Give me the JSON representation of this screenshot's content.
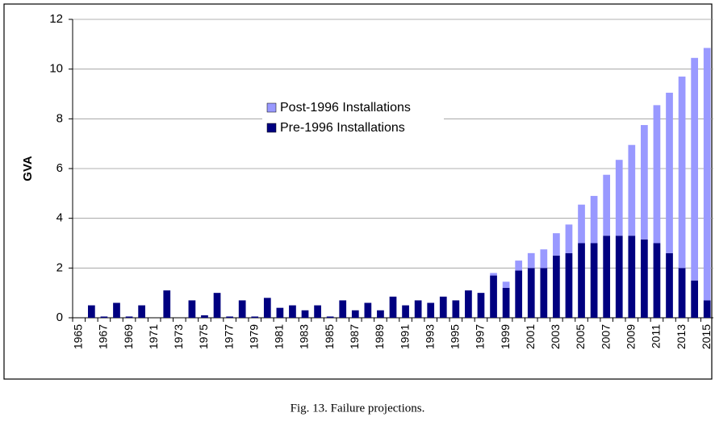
{
  "chart_data": {
    "type": "bar",
    "stacked": true,
    "y_label": "GVA",
    "caption": "Fig. 13.  Failure projections.",
    "categories": [
      "1965",
      null,
      "1967",
      null,
      "1969",
      null,
      "1971",
      null,
      "1973",
      null,
      "1975",
      null,
      "1977",
      null,
      "1979",
      null,
      "1981",
      null,
      "1983",
      null,
      "1985",
      null,
      "1987",
      null,
      "1989",
      null,
      "1991",
      null,
      "1993",
      null,
      "1995",
      null,
      "1997",
      null,
      "1999",
      null,
      "2001",
      null,
      "2003",
      null,
      "2005",
      null,
      "2007",
      null,
      "2009",
      null,
      "2011",
      null,
      "2013",
      null,
      "2015"
    ],
    "series": [
      {
        "name": "Pre-1996 Installations",
        "color": "#000080",
        "values": [
          0,
          0.5,
          0.05,
          0.6,
          0.05,
          0.5,
          0,
          1.1,
          0,
          0.7,
          0.1,
          1.0,
          0.05,
          0.7,
          0.05,
          0.8,
          0.4,
          0.5,
          0.3,
          0.5,
          0.05,
          0.7,
          0.3,
          0.6,
          0.3,
          0.85,
          0.5,
          0.7,
          0.6,
          0.85,
          0.7,
          1.1,
          1.0,
          1.7,
          1.2,
          1.9,
          2.0,
          2.0,
          2.5,
          2.6,
          3.0,
          3.0,
          3.3,
          3.3,
          3.3,
          3.15,
          3.0,
          2.6,
          2.0,
          1.5,
          0.7
        ]
      },
      {
        "name": "Post-1996 Installations",
        "color": "#9999ff",
        "values": [
          0,
          0,
          0,
          0,
          0,
          0,
          0,
          0,
          0,
          0,
          0,
          0,
          0,
          0,
          0,
          0,
          0,
          0,
          0,
          0,
          0,
          0,
          0,
          0,
          0,
          0,
          0,
          0,
          0,
          0,
          0,
          0,
          0,
          0.1,
          0.25,
          0.4,
          0.6,
          0.75,
          0.9,
          1.15,
          1.55,
          1.9,
          2.45,
          3.05,
          3.65,
          4.6,
          5.55,
          6.45,
          7.7,
          8.95,
          10.15
        ]
      }
    ],
    "ylim": [
      0,
      12
    ],
    "yticks": [
      0,
      2,
      4,
      6,
      8,
      10,
      12
    ],
    "grid": true
  }
}
